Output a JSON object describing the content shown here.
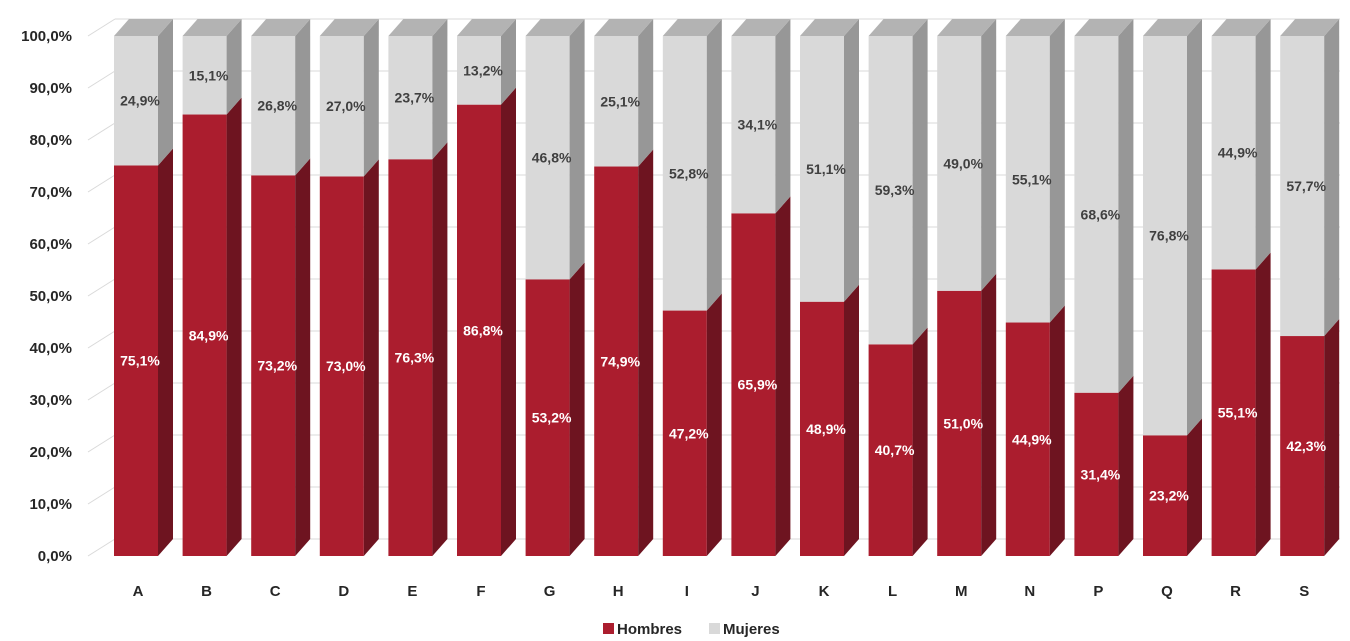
{
  "chart_data": {
    "type": "bar",
    "stacked": true,
    "three_d": true,
    "percent_stacked": true,
    "categories": [
      "A",
      "B",
      "C",
      "D",
      "E",
      "F",
      "G",
      "H",
      "I",
      "J",
      "K",
      "L",
      "M",
      "N",
      "P",
      "Q",
      "R",
      "S"
    ],
    "series": [
      {
        "name": "Hombres",
        "color": "#ab1d2e",
        "values": [
          75.1,
          84.9,
          73.2,
          73.0,
          76.3,
          86.8,
          53.2,
          74.9,
          47.2,
          65.9,
          48.9,
          40.7,
          51.0,
          44.9,
          31.4,
          23.2,
          55.1,
          42.3
        ]
      },
      {
        "name": "Mujeres",
        "color": "#d9d9d9",
        "values": [
          24.9,
          15.1,
          26.8,
          27.0,
          23.7,
          13.2,
          46.8,
          25.1,
          52.8,
          34.1,
          51.1,
          59.3,
          49.0,
          55.1,
          68.6,
          76.8,
          44.9,
          57.7
        ]
      }
    ],
    "data_labels": {
      "Hombres": [
        "75,1%",
        "84,9%",
        "73,2%",
        "73,0%",
        "76,3%",
        "86,8%",
        "53,2%",
        "74,9%",
        "47,2%",
        "65,9%",
        "48,9%",
        "40,7%",
        "51,0%",
        "44,9%",
        "31,4%",
        "23,2%",
        "55,1%",
        "42,3%"
      ],
      "Mujeres": [
        "24,9%",
        "15,1%",
        "26,8%",
        "27,0%",
        "23,7%",
        "13,2%",
        "46,8%",
        "25,1%",
        "52,8%",
        "34,1%",
        "51,1%",
        "59,3%",
        "49,0%",
        "55,1%",
        "68,6%",
        "76,8%",
        "44,9%",
        "57,7%"
      ]
    },
    "y_ticks": [
      "0,0%",
      "10,0%",
      "20,0%",
      "30,0%",
      "40,0%",
      "50,0%",
      "60,0%",
      "70,0%",
      "80,0%",
      "90,0%",
      "100,0%"
    ],
    "ylim": [
      0,
      100
    ],
    "grid": true,
    "legend_position": "bottom"
  }
}
